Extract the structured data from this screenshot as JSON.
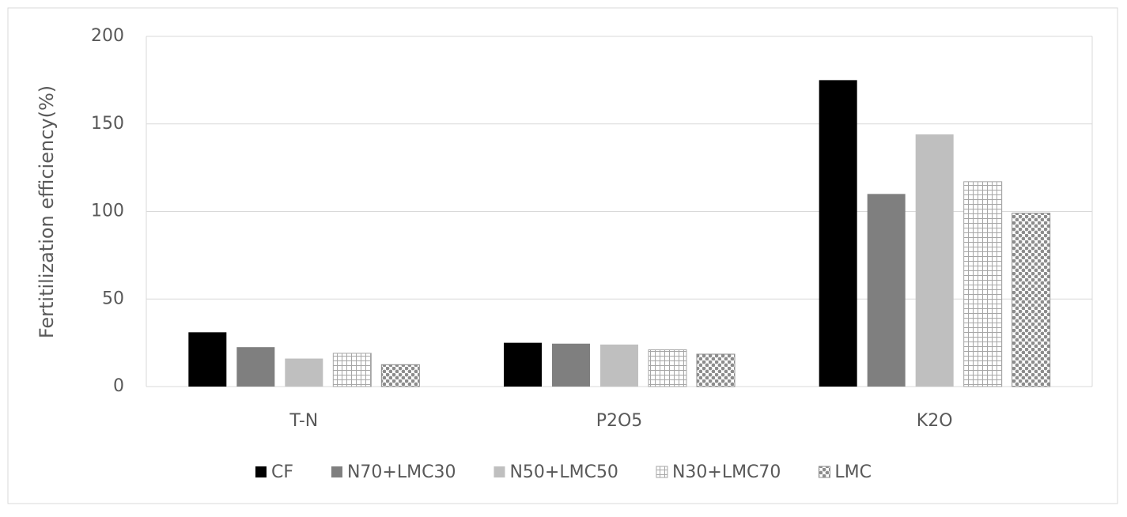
{
  "chart_data": {
    "type": "bar",
    "y_label": "Fertitilization efficiency(%)",
    "categories": [
      "T-N",
      "P2O5",
      "K2O"
    ],
    "series": [
      {
        "name": "CF",
        "color": "#000000",
        "values": [
          31,
          25,
          175
        ]
      },
      {
        "name": "N70+LMC30",
        "color": "#7f7f7f",
        "values": [
          22.5,
          24.5,
          110
        ]
      },
      {
        "name": "N50+LMC50",
        "color": "#bfbfbf",
        "values": [
          16,
          24,
          144
        ]
      },
      {
        "name": "N30+LMC70",
        "color": "#a6a6a6",
        "pattern": "grid",
        "values": [
          19,
          21,
          117
        ]
      },
      {
        "name": "LMC",
        "color": "#8c8c8c",
        "pattern": "checker",
        "values": [
          12.5,
          18.5,
          99
        ]
      }
    ],
    "ylim": [
      0,
      200
    ],
    "yticks": [
      0,
      50,
      100,
      150,
      200
    ],
    "grid": true,
    "legend": "bottom"
  }
}
